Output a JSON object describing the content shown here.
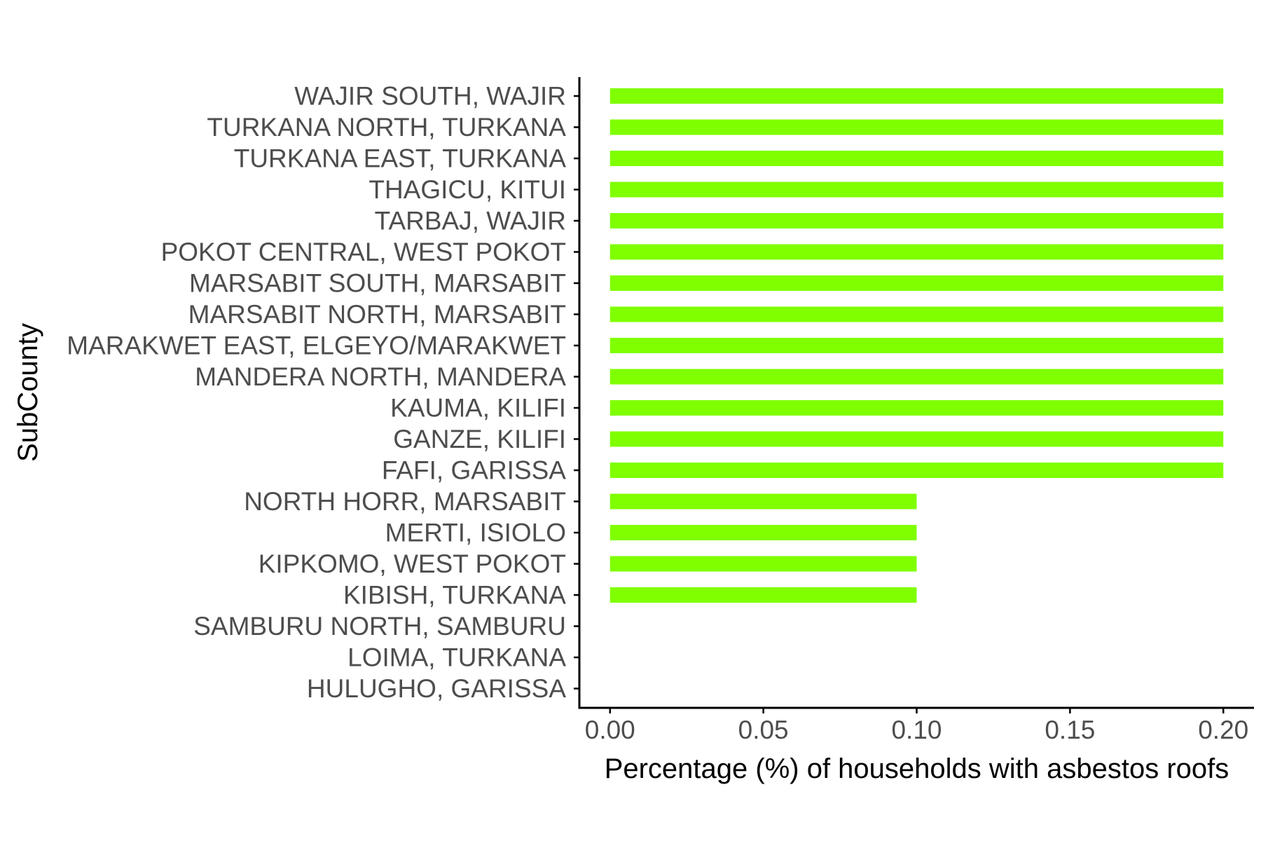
{
  "chart_data": {
    "type": "bar",
    "orientation": "horizontal",
    "title": "",
    "xlabel": "Percentage (%) of households with asbestos roofs",
    "ylabel": "SubCounty",
    "xlim": [
      -0.01,
      0.21
    ],
    "xticks": [
      0.0,
      0.05,
      0.1,
      0.15,
      0.2
    ],
    "xtick_labels": [
      "0.00",
      "0.05",
      "0.10",
      "0.15",
      "0.20"
    ],
    "grid": false,
    "legend": "none",
    "bar_color": "#7FFF00",
    "categories": [
      "WAJIR SOUTH, WAJIR",
      "TURKANA NORTH, TURKANA",
      "TURKANA EAST, TURKANA",
      "THAGICU, KITUI",
      "TARBAJ, WAJIR",
      "POKOT CENTRAL, WEST POKOT",
      "MARSABIT SOUTH, MARSABIT",
      "MARSABIT NORTH, MARSABIT",
      "MARAKWET EAST, ELGEYO/MARAKWET",
      "MANDERA NORTH, MANDERA",
      "KAUMA, KILIFI",
      "GANZE, KILIFI",
      "FAFI, GARISSA",
      "NORTH HORR, MARSABIT",
      "MERTI, ISIOLO",
      "KIPKOMO, WEST POKOT",
      "KIBISH, TURKANA",
      "SAMBURU NORTH, SAMBURU",
      "LOIMA, TURKANA",
      "HULUGHO, GARISSA"
    ],
    "values": [
      0.2,
      0.2,
      0.2,
      0.2,
      0.2,
      0.2,
      0.2,
      0.2,
      0.2,
      0.2,
      0.2,
      0.2,
      0.2,
      0.1,
      0.1,
      0.1,
      0.1,
      0.0,
      0.0,
      0.0
    ]
  }
}
